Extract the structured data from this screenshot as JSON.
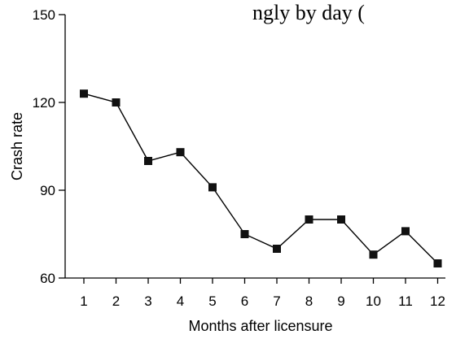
{
  "top_text": "ngly by day (",
  "chart_data": {
    "type": "line",
    "title": "",
    "xlabel": "Months after licensure",
    "ylabel": "Crash rate",
    "x": [
      1,
      2,
      3,
      4,
      5,
      6,
      7,
      8,
      9,
      10,
      11,
      12
    ],
    "categories": [
      "1",
      "2",
      "3",
      "4",
      "5",
      "6",
      "7",
      "8",
      "9",
      "10",
      "11",
      "12"
    ],
    "series": [
      {
        "values": [
          123,
          120,
          100,
          103,
          91,
          75,
          70,
          80,
          80,
          68,
          76,
          65
        ]
      }
    ],
    "ylim": [
      60,
      150
    ],
    "yticks": [
      60,
      90,
      120,
      150
    ],
    "grid": false,
    "marker": "square",
    "line_color": "#000000"
  }
}
